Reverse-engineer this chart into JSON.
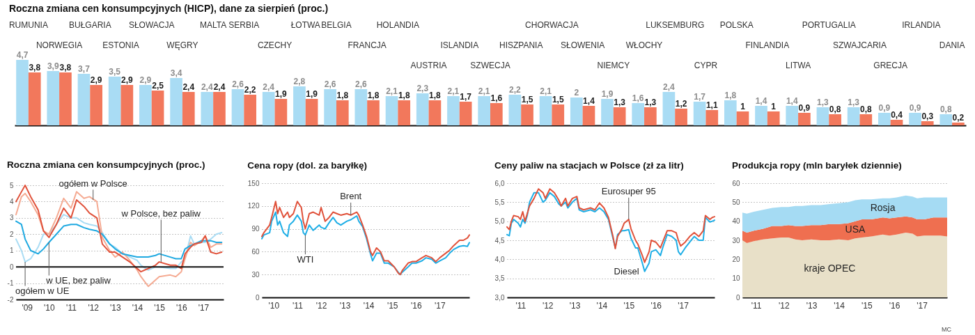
{
  "chart_data": [
    {
      "type": "bar",
      "title": "Roczna zmiana cen konsumpcyjnych (HICP), dane za sierpień (proc.)",
      "categories": [
        "RUMUNIA",
        "NORWEGIA",
        "BUŁGARIA",
        "ESTONIA",
        "SŁOWACJA",
        "WĘGRY",
        "MALTA",
        "SERBIA",
        "CZECHY",
        "ŁOTWA",
        "BELGIA",
        "FRANCJA",
        "HOLANDIA",
        "AUSTRIA",
        "ISLANDIA",
        "SZWECJA",
        "HISZPANIA",
        "CHORWACJA",
        "SŁOWENIA",
        "NIEMCY",
        "WŁOCHY",
        "LUKSEMBURG",
        "CYPR",
        "POLSKA",
        "FINLANDIA",
        "LITWA",
        "PORTUGALIA",
        "SZWAJCARIA",
        "GRECJA",
        "IRLANDIA",
        "DANIA"
      ],
      "series": [
        {
          "color": "#a9dcf4",
          "values": [
            4.7,
            3.9,
            3.7,
            3.5,
            2.9,
            3.4,
            2.4,
            2.6,
            2.4,
            2.8,
            2.6,
            2.6,
            2.1,
            2.3,
            2.1,
            2.1,
            2.2,
            2.1,
            2,
            1.9,
            1.6,
            2.4,
            1.7,
            1.8,
            1.4,
            1.4,
            1.3,
            1.3,
            0.9,
            0.9,
            0.8
          ],
          "value_labels": [
            "4,7",
            "3,9",
            "3,7",
            "3,5",
            "2,9",
            "3,4",
            "2,4",
            "2,6",
            "2,4",
            "2,8",
            "2,6",
            "2,6",
            "2,1",
            "2,3",
            "2,1",
            "2,1",
            "2,2",
            "2,1",
            "2",
            "1,9",
            "1,6",
            "2,4",
            "1,7",
            "1,8",
            "1,4",
            "1,4",
            "1,3",
            "1,3",
            "0,9",
            "0,9",
            "0,8"
          ]
        },
        {
          "color": "#f2785c",
          "values": [
            3.8,
            3.8,
            2.9,
            2.9,
            2.5,
            2.4,
            2.4,
            2.2,
            1.9,
            1.9,
            1.8,
            1.8,
            1.8,
            1.8,
            1.7,
            1.6,
            1.5,
            1.5,
            1.4,
            1.3,
            1.3,
            1.2,
            1.1,
            1,
            1,
            0.9,
            0.8,
            0.8,
            0.4,
            0.3,
            0.2
          ],
          "value_labels": [
            "3,8",
            "3,8",
            "2,9",
            "2,9",
            "2,5",
            "2,4",
            "2,4",
            "2,2",
            "1,9",
            "1,9",
            "1,8",
            "1,8",
            "1,8",
            "1,8",
            "1,7",
            "1,6",
            "1,5",
            "1,5",
            "1,4",
            "1,3",
            "1,3",
            "1,2",
            "1,1",
            "1",
            "1",
            "0,9",
            "0,8",
            "0,8",
            "0,4",
            "0,3",
            "0,2"
          ]
        }
      ]
    },
    {
      "type": "line",
      "title": "Roczna zmiana cen konsumpcyjnych (proc.)",
      "x": [
        "2009-01",
        "2009-04",
        "2009-06",
        "2009-09",
        "2010-01",
        "2010-04",
        "2010-07",
        "2010-11",
        "2011-03",
        "2011-07",
        "2011-10",
        "2012-02",
        "2012-05",
        "2012-09",
        "2012-12",
        "2013-04",
        "2013-07",
        "2013-11",
        "2014-03",
        "2014-07",
        "2014-09",
        "2015-01",
        "2015-05",
        "2015-07",
        "2016-01",
        "2016-04",
        "2016-07",
        "2016-09",
        "2016-12",
        "2017-02",
        "2017-06",
        "2017-08",
        "2017-11",
        "2018-02",
        "2018-05"
      ],
      "series": [
        {
          "color": "#a9dcf4",
          "values": [
            1.7,
            1.0,
            0.3,
            0.5,
            1.2,
            2.0,
            2.0,
            2.6,
            3.2,
            3.0,
            3.0,
            2.7,
            2.6,
            2.5,
            2.1,
            1.4,
            1.2,
            0.8,
            0.6,
            0.4,
            0.1,
            -0.2,
            0.0,
            0.0,
            -0.1,
            -0.1,
            0.3,
            0.5,
            1.9,
            1.4,
            1.5,
            1.5,
            1.7,
            2.0,
            2.1
          ]
        },
        {
          "color": "#f5aa92",
          "values": [
            3.2,
            4.3,
            4.5,
            4.0,
            3.2,
            2.2,
            2.0,
            3.0,
            4.2,
            3.6,
            4.6,
            4.2,
            4.3,
            4.0,
            1.8,
            1.0,
            0.6,
            0.9,
            0.4,
            -0.2,
            -0.6,
            -1.2,
            -0.8,
            -0.6,
            -0.5,
            -0.6,
            -0.3,
            0.5,
            1.5,
            1.3,
            1.6,
            1.9,
            1.2,
            1.4,
            1.4
          ]
        },
        {
          "color": "#1ea9e1",
          "values": [
            2.8,
            2.6,
            1.7,
            1.0,
            0.8,
            1.1,
            1.5,
            2.0,
            2.5,
            2.6,
            2.6,
            2.4,
            2.3,
            2.2,
            2.0,
            1.4,
            1.1,
            0.8,
            0.7,
            0.6,
            0.6,
            0.6,
            0.7,
            0.8,
            0.6,
            0.5,
            0.5,
            1.1,
            1.3,
            1.4,
            1.6,
            1.6,
            1.6,
            1.5,
            1.5
          ]
        },
        {
          "color": "#e0513a",
          "values": [
            4.0,
            4.6,
            5.0,
            4.3,
            3.5,
            2.2,
            1.8,
            2.6,
            3.6,
            3.0,
            4.1,
            3.7,
            3.3,
            3.0,
            1.4,
            0.9,
            0.9,
            0.6,
            0.3,
            -0.1,
            -0.3,
            -0.1,
            0.1,
            0.3,
            0.1,
            0.1,
            -0.1,
            0.8,
            1.2,
            1.4,
            1.5,
            1.9,
            0.9,
            0.8,
            0.9
          ]
        }
      ],
      "annotations": [
        {
          "text": "ogółem w Polsce",
          "x": "2012-07",
          "y": 4.1
        },
        {
          "text": "w Polsce, bez paliw",
          "x": "2015-08",
          "y": 0.3
        },
        {
          "text": "w UE, bez paliw",
          "x": "2010-07",
          "y": 1.5
        },
        {
          "text": "ogółem w UE",
          "x": "2009-06",
          "y": 0.3
        }
      ],
      "ref_lines": [
        {
          "axis": "y",
          "value": 0
        }
      ],
      "xlim": [
        "2009-01",
        "2018-06"
      ],
      "ylim": [
        -2,
        5
      ],
      "yticks": [
        -2,
        -1,
        0,
        1,
        2,
        3,
        4,
        5
      ],
      "xticks": [
        {
          "value": "2009-07",
          "label": "'09"
        },
        {
          "value": "2010-07",
          "label": "'10"
        },
        {
          "value": "2011-07",
          "label": "'11"
        },
        {
          "value": "2012-07",
          "label": "'12"
        },
        {
          "value": "2013-07",
          "label": "'13"
        },
        {
          "value": "2014-07",
          "label": "'14"
        },
        {
          "value": "2015-07",
          "label": "'15"
        },
        {
          "value": "2016-07",
          "label": "'16"
        },
        {
          "value": "2017-07",
          "label": "'17"
        }
      ],
      "grid": "y"
    },
    {
      "type": "line",
      "title": "Cena ropy (dol. za baryłkę)",
      "x": [
        "2010-01",
        "2010-02",
        "2010-05",
        "2010-06",
        "2010-08",
        "2010-09",
        "2010-10",
        "2010-12",
        "2011-02",
        "2011-03",
        "2011-05",
        "2011-07",
        "2011-09",
        "2011-10",
        "2011-11",
        "2012-01",
        "2012-03",
        "2012-06",
        "2012-07",
        "2012-09",
        "2012-11",
        "2013-01",
        "2013-03",
        "2013-05",
        "2013-08",
        "2013-10",
        "2014-01",
        "2014-02",
        "2014-04",
        "2014-06",
        "2014-08",
        "2014-09",
        "2014-11",
        "2015-01",
        "2015-03",
        "2015-05",
        "2015-08",
        "2015-10",
        "2015-11",
        "2015-12",
        "2016-03",
        "2016-05",
        "2016-07",
        "2016-10",
        "2016-12",
        "2017-03",
        "2017-05",
        "2017-07",
        "2017-10",
        "2017-12",
        "2018-02",
        "2018-05",
        "2018-07",
        "2018-09",
        "2018-10"
      ],
      "series": [
        {
          "color": "#1eaee6",
          "values": [
            77,
            82,
            85,
            100,
            112,
            95,
            100,
            85,
            80,
            95,
            100,
            108,
            100,
            85,
            82,
            95,
            88,
            95,
            92,
            90,
            98,
            105,
            98,
            95,
            100,
            102,
            107,
            100,
            93,
            77,
            57,
            48,
            58,
            58,
            45,
            45,
            40,
            33,
            30,
            33,
            40,
            45,
            45,
            48,
            52,
            50,
            45,
            48,
            52,
            58,
            63,
            67,
            68,
            67,
            72
          ]
        },
        {
          "color": "#e0513a",
          "values": [
            80,
            85,
            95,
            105,
            126,
            110,
            118,
            105,
            112,
            105,
            110,
            126,
            118,
            100,
            90,
            110,
            112,
            108,
            118,
            100,
            105,
            112,
            110,
            108,
            110,
            108,
            112,
            108,
            95,
            80,
            60,
            55,
            65,
            60,
            48,
            48,
            40,
            32,
            30,
            35,
            45,
            47,
            47,
            52,
            55,
            52,
            47,
            52,
            58,
            62,
            68,
            75,
            75,
            78,
            82
          ]
        }
      ],
      "annotations": [
        {
          "text": "Brent",
          "x": "2013-10",
          "y": 108
        },
        {
          "text": "WTI",
          "x": "2011-11",
          "y": 82
        }
      ],
      "xlim": [
        "2010-01",
        "2018-10"
      ],
      "ylim": [
        0,
        150
      ],
      "yticks": [
        0,
        30,
        60,
        90,
        120,
        150
      ],
      "xticks": [
        {
          "value": "2010-07",
          "label": "'10"
        },
        {
          "value": "2011-07",
          "label": "'11"
        },
        {
          "value": "2012-07",
          "label": "'12"
        },
        {
          "value": "2013-07",
          "label": "'13"
        },
        {
          "value": "2014-07",
          "label": "'14"
        },
        {
          "value": "2015-07",
          "label": "'15"
        },
        {
          "value": "2016-07",
          "label": "'16"
        },
        {
          "value": "2017-07",
          "label": "'17"
        }
      ],
      "grid": "y"
    },
    {
      "type": "line",
      "title": "Ceny paliw na stacjach w Polsce (zł za litr)",
      "x": [
        "2011-01",
        "2011-02",
        "2011-03",
        "2011-04",
        "2011-06",
        "2011-07",
        "2011-08",
        "2011-09",
        "2011-10",
        "2011-11",
        "2012-01",
        "2012-03",
        "2012-05",
        "2012-06",
        "2012-08",
        "2012-10",
        "2012-12",
        "2013-01",
        "2013-03",
        "2013-04",
        "2013-06",
        "2013-08",
        "2013-09",
        "2013-11",
        "2014-02",
        "2014-04",
        "2014-06",
        "2014-08",
        "2014-10",
        "2014-12",
        "2015-01",
        "2015-02",
        "2015-04",
        "2015-05",
        "2015-07",
        "2015-08",
        "2015-10",
        "2015-11",
        "2016-01",
        "2016-02",
        "2016-04",
        "2016-05",
        "2016-07",
        "2016-09",
        "2016-10",
        "2016-12",
        "2017-02",
        "2017-04",
        "2017-05",
        "2017-06",
        "2017-08",
        "2017-10",
        "2017-12",
        "2018-02",
        "2018-04",
        "2018-05",
        "2018-07",
        "2018-08",
        "2018-09"
      ],
      "series": [
        {
          "color": "#1eaee6",
          "values": [
            4.65,
            4.62,
            4.95,
            5.05,
            4.95,
            4.85,
            5.05,
            4.95,
            5.15,
            5.5,
            5.75,
            5.75,
            5.5,
            5.55,
            5.75,
            5.65,
            5.45,
            5.4,
            5.5,
            5.35,
            5.5,
            5.6,
            5.3,
            5.25,
            5.3,
            5.25,
            5.35,
            5.25,
            5.05,
            4.55,
            4.3,
            4.65,
            4.75,
            4.75,
            4.78,
            4.55,
            4.3,
            4.3,
            3.9,
            3.68,
            3.9,
            4.2,
            4.25,
            4.1,
            4.3,
            4.65,
            4.6,
            4.5,
            4.2,
            4.12,
            4.3,
            4.45,
            4.6,
            4.5,
            4.5,
            5.1,
            4.98,
            5.0,
            5.03
          ]
        },
        {
          "color": "#e0513a",
          "values": [
            4.85,
            4.78,
            5.0,
            5.15,
            5.12,
            5.05,
            5.25,
            5.0,
            5.2,
            5.4,
            5.6,
            5.85,
            5.75,
            5.6,
            5.85,
            5.75,
            5.55,
            5.4,
            5.6,
            5.4,
            5.6,
            5.65,
            5.35,
            5.3,
            5.35,
            5.3,
            5.48,
            5.35,
            5.1,
            4.6,
            4.28,
            4.6,
            4.8,
            4.95,
            5.05,
            4.8,
            4.5,
            4.4,
            4.1,
            3.92,
            4.2,
            4.5,
            4.45,
            4.3,
            4.45,
            4.75,
            4.75,
            4.7,
            4.5,
            4.35,
            4.45,
            4.6,
            4.7,
            4.6,
            4.75,
            5.15,
            5.05,
            5.1,
            5.12
          ]
        }
      ],
      "annotations": [
        {
          "text": "Eurosuper 95",
          "x": "2015-07",
          "y": 5.05
        },
        {
          "text": "Diesel",
          "x": "2016-02",
          "y": 3.68
        }
      ],
      "xlim": [
        "2011-01",
        "2018-09"
      ],
      "ylim": [
        3,
        6
      ],
      "yticks": [
        {
          "value": 3,
          "label": "3,0"
        },
        {
          "value": 3.5,
          "label": "3,5"
        },
        {
          "value": 4,
          "label": "4,0"
        },
        {
          "value": 4.5,
          "label": "4,5"
        },
        {
          "value": 5,
          "label": "5,0"
        },
        {
          "value": 5.5,
          "label": "5,5"
        },
        {
          "value": 6,
          "label": "6,0"
        }
      ],
      "xticks": [
        {
          "value": "2011-07",
          "label": "'11"
        },
        {
          "value": "2012-07",
          "label": "'12"
        },
        {
          "value": "2013-07",
          "label": "'13"
        },
        {
          "value": "2014-07",
          "label": "'14"
        },
        {
          "value": "2015-07",
          "label": "'15"
        },
        {
          "value": "2016-07",
          "label": "'16"
        },
        {
          "value": "2017-07",
          "label": "'17"
        }
      ],
      "grid": "y"
    },
    {
      "type": "area",
      "stacked": true,
      "title": "Produkcja ropy (mln baryłek dziennie)",
      "x": [
        "2011-01",
        "2011-03",
        "2011-06",
        "2011-10",
        "2012-02",
        "2012-06",
        "2012-09",
        "2012-12",
        "2013-03",
        "2013-07",
        "2013-11",
        "2014-03",
        "2014-07",
        "2014-11",
        "2015-02",
        "2015-05",
        "2015-09",
        "2016-02",
        "2016-05",
        "2016-08",
        "2016-12",
        "2017-03",
        "2017-05",
        "2017-08",
        "2017-12",
        "2018-03",
        "2018-06"
      ],
      "series": [
        {
          "name": "kraje OPEC",
          "color": "#e8e0c8",
          "values": [
            30,
            28.5,
            29.5,
            30.5,
            31,
            31.5,
            31.5,
            30.5,
            30,
            30.5,
            30,
            30,
            30.5,
            30,
            31,
            31.5,
            32,
            33,
            32.5,
            33,
            34,
            33.5,
            32,
            32.5,
            32.5,
            32.5,
            32
          ]
        },
        {
          "name": "USA",
          "color": "#ef6f50",
          "values": [
            5,
            5.5,
            5.5,
            5.5,
            6.5,
            6,
            6.5,
            7,
            7.5,
            7.5,
            8,
            8.5,
            8,
            9,
            9,
            9.5,
            9,
            9,
            9,
            9,
            8.5,
            8.5,
            9,
            8.5,
            9.5,
            9.5,
            10
          ]
        },
        {
          "name": "Rosja",
          "color": "#a5dbf3",
          "values": [
            9.5,
            10,
            10,
            10,
            9.5,
            10,
            9.5,
            10.5,
            10.5,
            10.5,
            10.5,
            10.5,
            11,
            11,
            11,
            10.5,
            10.5,
            10,
            10.5,
            10.5,
            11,
            11,
            11,
            11.5,
            10.5,
            10.5,
            10.5
          ]
        }
      ],
      "annotations": [
        "MC"
      ],
      "xlim": [
        "2011-01",
        "2018-06"
      ],
      "ylim": [
        0,
        60
      ],
      "yticks": [
        0,
        10,
        20,
        30,
        40,
        50,
        60
      ],
      "xticks": [
        {
          "value": "2011-07",
          "label": "'11"
        },
        {
          "value": "2012-07",
          "label": "'12"
        },
        {
          "value": "2013-07",
          "label": "'13"
        },
        {
          "value": "2014-07",
          "label": "'14"
        },
        {
          "value": "2015-07",
          "label": "'15"
        },
        {
          "value": "2016-07",
          "label": "'16"
        },
        {
          "value": "2017-07",
          "label": "'17"
        }
      ],
      "grid": "y"
    }
  ]
}
